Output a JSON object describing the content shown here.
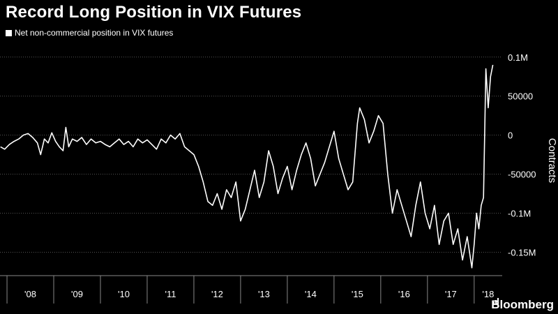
{
  "header": {
    "title": "Record Long Position in VIX Futures"
  },
  "legend": {
    "label": "Net non-commercial position in VIX futures",
    "swatch_color": "#ffffff"
  },
  "brand": {
    "name": "Bloomberg",
    "icon": "bar-chart-icon"
  },
  "chart_data": {
    "type": "line",
    "title": "Record Long Position in VIX Futures",
    "ylabel": "Contracts",
    "xlabel": "",
    "x_tick_labels": [
      "'08",
      "'09",
      "'10",
      "'11",
      "'12",
      "'13",
      "'14",
      "'15",
      "'16",
      "'17",
      "'18"
    ],
    "y_tick_labels": [
      "0.1M",
      "50000",
      "0",
      "-50000",
      "-0.1M",
      "-0.15M"
    ],
    "y_tick_values": [
      100000,
      50000,
      0,
      -50000,
      -100000,
      -150000
    ],
    "ylim": [
      -180000,
      115000
    ],
    "xlim": [
      2007.85,
      2018.6
    ],
    "grid": "horizontal dotted",
    "legend_position": "top-left",
    "line_color": "#ffffff",
    "background_color": "#000000",
    "series": [
      {
        "name": "Net non-commercial position in VIX futures",
        "x": [
          2007.86,
          2007.95,
          2008.05,
          2008.15,
          2008.25,
          2008.35,
          2008.45,
          2008.55,
          2008.65,
          2008.72,
          2008.8,
          2008.88,
          2008.96,
          2009.04,
          2009.12,
          2009.2,
          2009.26,
          2009.32,
          2009.4,
          2009.5,
          2009.6,
          2009.7,
          2009.8,
          2009.9,
          2010.0,
          2010.1,
          2010.2,
          2010.3,
          2010.4,
          2010.5,
          2010.6,
          2010.7,
          2010.8,
          2010.9,
          2011.0,
          2011.1,
          2011.2,
          2011.3,
          2011.4,
          2011.5,
          2011.6,
          2011.7,
          2011.8,
          2011.9,
          2012.0,
          2012.1,
          2012.2,
          2012.3,
          2012.4,
          2012.5,
          2012.6,
          2012.7,
          2012.8,
          2012.9,
          2013.0,
          2013.1,
          2013.2,
          2013.3,
          2013.4,
          2013.5,
          2013.6,
          2013.7,
          2013.8,
          2013.9,
          2014.0,
          2014.1,
          2014.2,
          2014.3,
          2014.4,
          2014.5,
          2014.6,
          2014.7,
          2014.8,
          2014.9,
          2015.0,
          2015.1,
          2015.2,
          2015.3,
          2015.4,
          2015.5,
          2015.55,
          2015.65,
          2015.75,
          2015.85,
          2015.95,
          2016.05,
          2016.15,
          2016.25,
          2016.35,
          2016.45,
          2016.55,
          2016.65,
          2016.75,
          2016.85,
          2016.95,
          2017.05,
          2017.15,
          2017.25,
          2017.35,
          2017.45,
          2017.55,
          2017.65,
          2017.75,
          2017.85,
          2017.95,
          2018.0,
          2018.05,
          2018.1,
          2018.15,
          2018.2,
          2018.25,
          2018.3,
          2018.35,
          2018.4
        ],
        "values": [
          -15000,
          -18000,
          -12000,
          -8000,
          -5000,
          0,
          2000,
          -3000,
          -10000,
          -25000,
          -5000,
          -10000,
          3000,
          -8000,
          -15000,
          -20000,
          10000,
          -15000,
          -5000,
          -8000,
          -3000,
          -12000,
          -5000,
          -10000,
          -8000,
          -12000,
          -15000,
          -10000,
          -5000,
          -12000,
          -8000,
          -15000,
          -5000,
          -10000,
          -6000,
          -12000,
          -18000,
          -5000,
          -10000,
          0,
          -5000,
          2000,
          -15000,
          -20000,
          -25000,
          -40000,
          -60000,
          -85000,
          -90000,
          -75000,
          -95000,
          -70000,
          -80000,
          -60000,
          -110000,
          -95000,
          -70000,
          -45000,
          -80000,
          -60000,
          -20000,
          -40000,
          -75000,
          -55000,
          -40000,
          -70000,
          -45000,
          -25000,
          -10000,
          -30000,
          -65000,
          -50000,
          -35000,
          -15000,
          5000,
          -30000,
          -50000,
          -70000,
          -60000,
          15000,
          35000,
          20000,
          -10000,
          5000,
          25000,
          15000,
          -50000,
          -100000,
          -70000,
          -90000,
          -110000,
          -130000,
          -90000,
          -60000,
          -100000,
          -120000,
          -90000,
          -140000,
          -110000,
          -100000,
          -140000,
          -120000,
          -160000,
          -130000,
          -170000,
          -140000,
          -100000,
          -120000,
          -90000,
          -80000,
          85000,
          35000,
          75000,
          90000
        ]
      }
    ]
  }
}
